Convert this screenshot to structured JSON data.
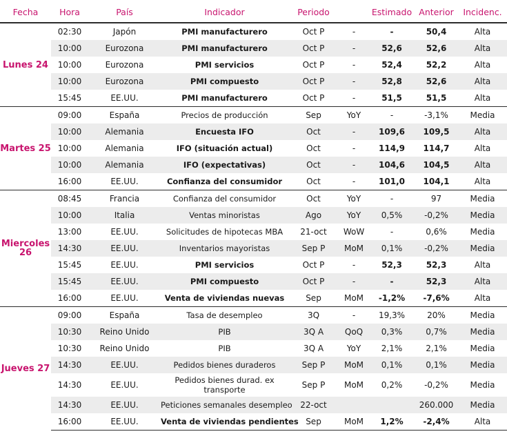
{
  "headers": [
    "Fecha",
    "Hora",
    "País",
    "Indicador",
    "Periodo",
    "",
    "Estimado",
    "Anterior",
    "Incidenc."
  ],
  "groups": [
    {
      "day": "Lunes 24",
      "rows": [
        {
          "hora": "02:30",
          "pais": "Japón",
          "indicador": "PMI manufacturero",
          "periodo": "Oct P",
          "unidad": "-",
          "estimado": "-",
          "anterior": "50,4",
          "incidencia": "Alta",
          "bold": true
        },
        {
          "hora": "10:00",
          "pais": "Eurozona",
          "indicador": "PMI manufacturero",
          "periodo": "Oct P",
          "unidad": "-",
          "estimado": "52,6",
          "anterior": "52,6",
          "incidencia": "Alta",
          "bold": true
        },
        {
          "hora": "10:00",
          "pais": "Eurozona",
          "indicador": "PMI servicios",
          "periodo": "Oct P",
          "unidad": "-",
          "estimado": "52,4",
          "anterior": "52,2",
          "incidencia": "Alta",
          "bold": true
        },
        {
          "hora": "10:00",
          "pais": "Eurozona",
          "indicador": "PMI compuesto",
          "periodo": "Oct P",
          "unidad": "-",
          "estimado": "52,8",
          "anterior": "52,6",
          "incidencia": "Alta",
          "bold": true
        },
        {
          "hora": "15:45",
          "pais": "EE.UU.",
          "indicador": "PMI manufacturero",
          "periodo": "Oct P",
          "unidad": "-",
          "estimado": "51,5",
          "anterior": "51,5",
          "incidencia": "Alta",
          "bold": true
        }
      ]
    },
    {
      "day": "Martes 25",
      "rows": [
        {
          "hora": "09:00",
          "pais": "España",
          "indicador": "Precios de producción",
          "periodo": "Sep",
          "unidad": "YoY",
          "estimado": "-",
          "anterior": "-3,1%",
          "incidencia": "Media",
          "bold": false
        },
        {
          "hora": "10:00",
          "pais": "Alemania",
          "indicador": "Encuesta IFO",
          "periodo": "Oct",
          "unidad": "-",
          "estimado": "109,6",
          "anterior": "109,5",
          "incidencia": "Alta",
          "bold": true
        },
        {
          "hora": "10:00",
          "pais": "Alemania",
          "indicador": "IFO (situación actual)",
          "periodo": "Oct",
          "unidad": "-",
          "estimado": "114,9",
          "anterior": "114,7",
          "incidencia": "Alta",
          "bold": true
        },
        {
          "hora": "10:00",
          "pais": "Alemania",
          "indicador": "IFO (expectativas)",
          "periodo": "Oct",
          "unidad": "-",
          "estimado": "104,6",
          "anterior": "104,5",
          "incidencia": "Alta",
          "bold": true
        },
        {
          "hora": "16:00",
          "pais": "EE.UU.",
          "indicador": "Confianza del consumidor",
          "periodo": "Oct",
          "unidad": "-",
          "estimado": "101,0",
          "anterior": "104,1",
          "incidencia": "Alta",
          "bold": true
        }
      ]
    },
    {
      "day": "Miercoles 26",
      "rows": [
        {
          "hora": "08:45",
          "pais": "Francia",
          "indicador": "Confianza del consumidor",
          "periodo": "Oct",
          "unidad": "YoY",
          "estimado": "-",
          "anterior": "97",
          "incidencia": "Media",
          "bold": false
        },
        {
          "hora": "10:00",
          "pais": "Italia",
          "indicador": "Ventas minoristas",
          "periodo": "Ago",
          "unidad": "YoY",
          "estimado": "0,5%",
          "anterior": "-0,2%",
          "incidencia": "Media",
          "bold": false
        },
        {
          "hora": "13:00",
          "pais": "EE.UU.",
          "indicador": "Solicitudes de hipotecas MBA",
          "periodo": "21-oct",
          "unidad": "WoW",
          "estimado": "-",
          "anterior": "0,6%",
          "incidencia": "Media",
          "bold": false
        },
        {
          "hora": "14:30",
          "pais": "EE.UU.",
          "indicador": "Inventarios mayoristas",
          "periodo": "Sep P",
          "unidad": "MoM",
          "estimado": "0,1%",
          "anterior": "-0,2%",
          "incidencia": "Media",
          "bold": false
        },
        {
          "hora": "15:45",
          "pais": "EE.UU.",
          "indicador": "PMI servicios",
          "periodo": "Oct P",
          "unidad": "-",
          "estimado": "52,3",
          "anterior": "52,3",
          "incidencia": "Alta",
          "bold": true
        },
        {
          "hora": "15:45",
          "pais": "EE.UU.",
          "indicador": "PMI compuesto",
          "periodo": "Oct P",
          "unidad": "-",
          "estimado": "-",
          "anterior": "52,3",
          "incidencia": "Alta",
          "bold": true
        },
        {
          "hora": "16:00",
          "pais": "EE.UU.",
          "indicador": "Venta de viviendas nuevas",
          "periodo": "Sep",
          "unidad": "MoM",
          "estimado": "-1,2%",
          "anterior": "-7,6%",
          "incidencia": "Alta",
          "bold": true
        }
      ]
    },
    {
      "day": "Jueves 27",
      "rows": [
        {
          "hora": "09:00",
          "pais": "España",
          "indicador": "Tasa de desempleo",
          "periodo": "3Q",
          "unidad": "-",
          "estimado": "19,3%",
          "anterior": "20%",
          "incidencia": "Media",
          "bold": false
        },
        {
          "hora": "10:30",
          "pais": "Reino Unido",
          "indicador": "PIB",
          "periodo": "3Q A",
          "unidad": "QoQ",
          "estimado": "0,3%",
          "anterior": "0,7%",
          "incidencia": "Media",
          "bold": false
        },
        {
          "hora": "10:30",
          "pais": "Reino Unido",
          "indicador": "PIB",
          "periodo": "3Q A",
          "unidad": "YoY",
          "estimado": "2,1%",
          "anterior": "2,1%",
          "incidencia": "Media",
          "bold": false
        },
        {
          "hora": "14:30",
          "pais": "EE.UU.",
          "indicador": "Pedidos bienes duraderos",
          "periodo": "Sep P",
          "unidad": "MoM",
          "estimado": "0,1%",
          "anterior": "0,1%",
          "incidencia": "Media",
          "bold": false
        },
        {
          "hora": "14:30",
          "pais": "EE.UU.",
          "indicador": "Pedidos bienes durad. ex transporte",
          "periodo": "Sep P",
          "unidad": "MoM",
          "estimado": "0,2%",
          "anterior": "-0,2%",
          "incidencia": "Media",
          "bold": false,
          "tall": true
        },
        {
          "hora": "14:30",
          "pais": "EE.UU.",
          "indicador": "Peticiones semanales desempleo",
          "periodo": "22-oct",
          "unidad": "",
          "estimado": "",
          "anterior": "260.000",
          "incidencia": "Media",
          "bold": false
        },
        {
          "hora": "16:00",
          "pais": "EE.UU.",
          "indicador": "Venta de viviendas pendientes",
          "periodo": "Sep",
          "unidad": "MoM",
          "estimado": "1,2%",
          "anterior": "-2,4%",
          "incidencia": "Alta",
          "bold": true
        }
      ]
    }
  ]
}
